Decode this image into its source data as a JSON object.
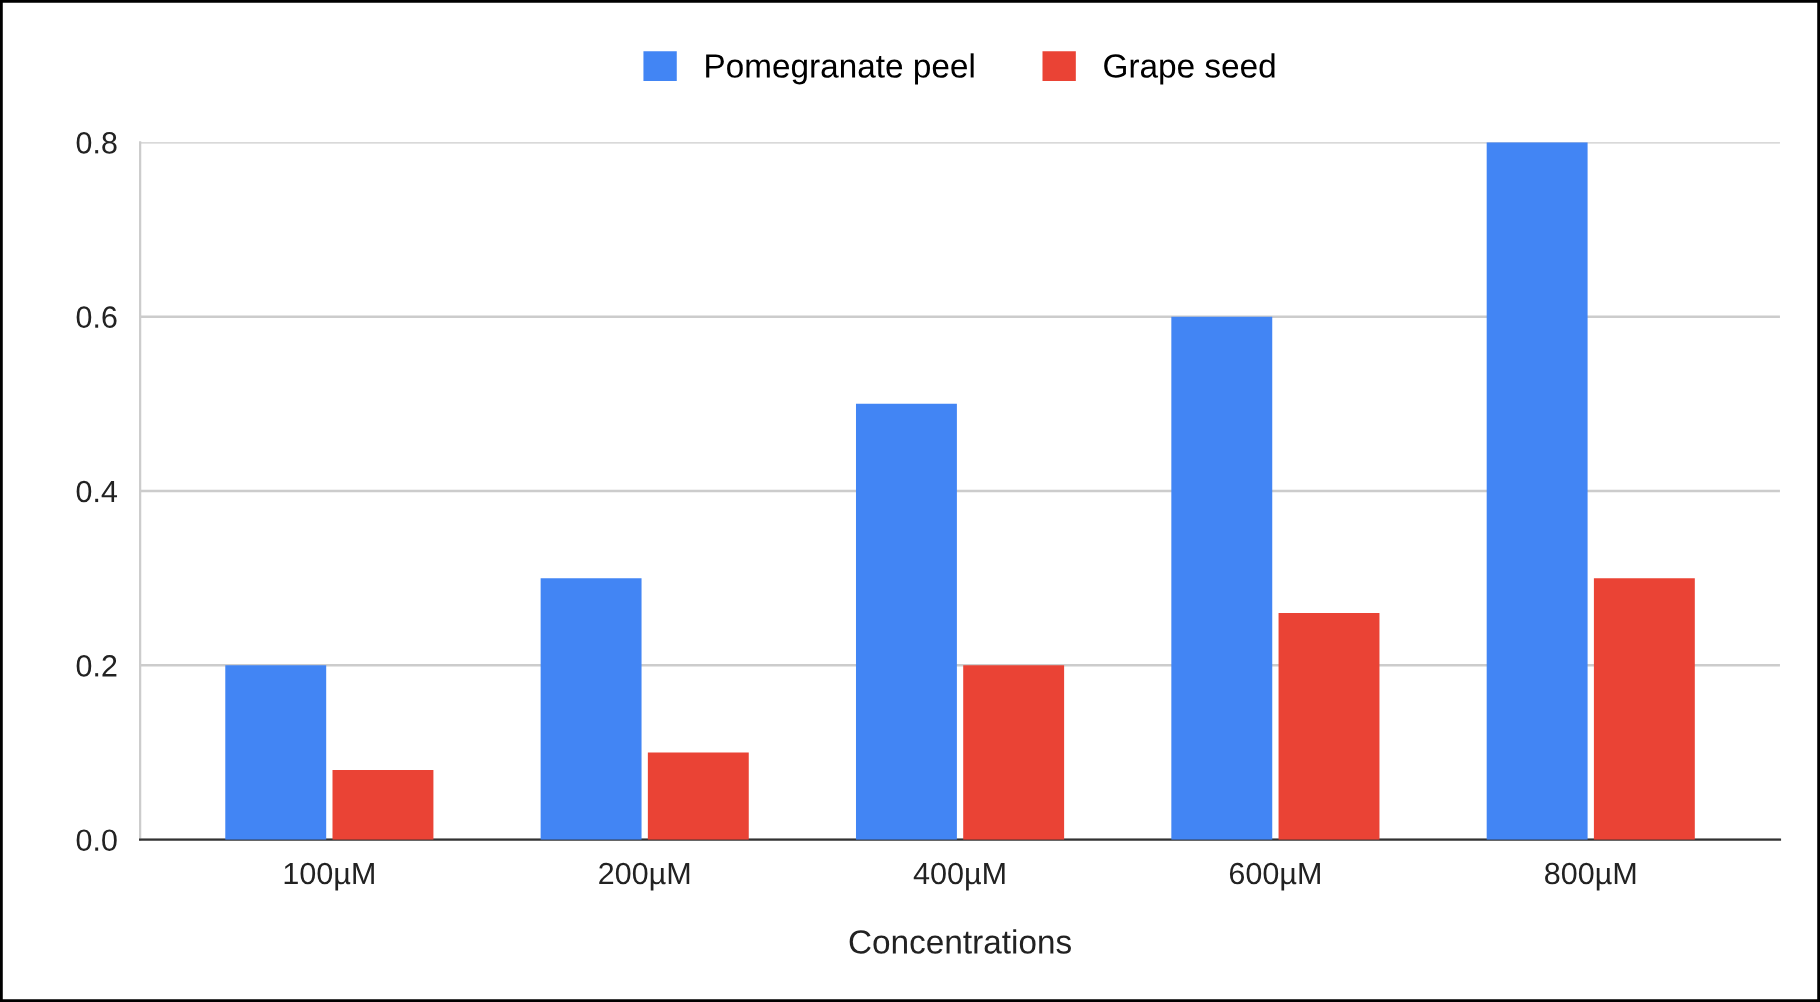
{
  "chart_data": {
    "type": "bar",
    "xlabel": "Concentrations",
    "categories": [
      "100µM",
      "200µM",
      "400µM",
      "600µM",
      "800µM"
    ],
    "series": [
      {
        "name": "Pomegranate peel",
        "color": "#4285f4",
        "values": [
          0.2,
          0.3,
          0.5,
          0.6,
          0.8
        ]
      },
      {
        "name": "Grape seed",
        "color": "#ea4335",
        "values": [
          0.08,
          0.1,
          0.2,
          0.26,
          0.3
        ]
      }
    ],
    "ylim": [
      0,
      0.8
    ],
    "yticks": [
      {
        "value": 0,
        "label": "0.0"
      },
      0.2,
      0.4,
      0.6,
      0.8
    ],
    "grid": "y",
    "legend": "top"
  }
}
